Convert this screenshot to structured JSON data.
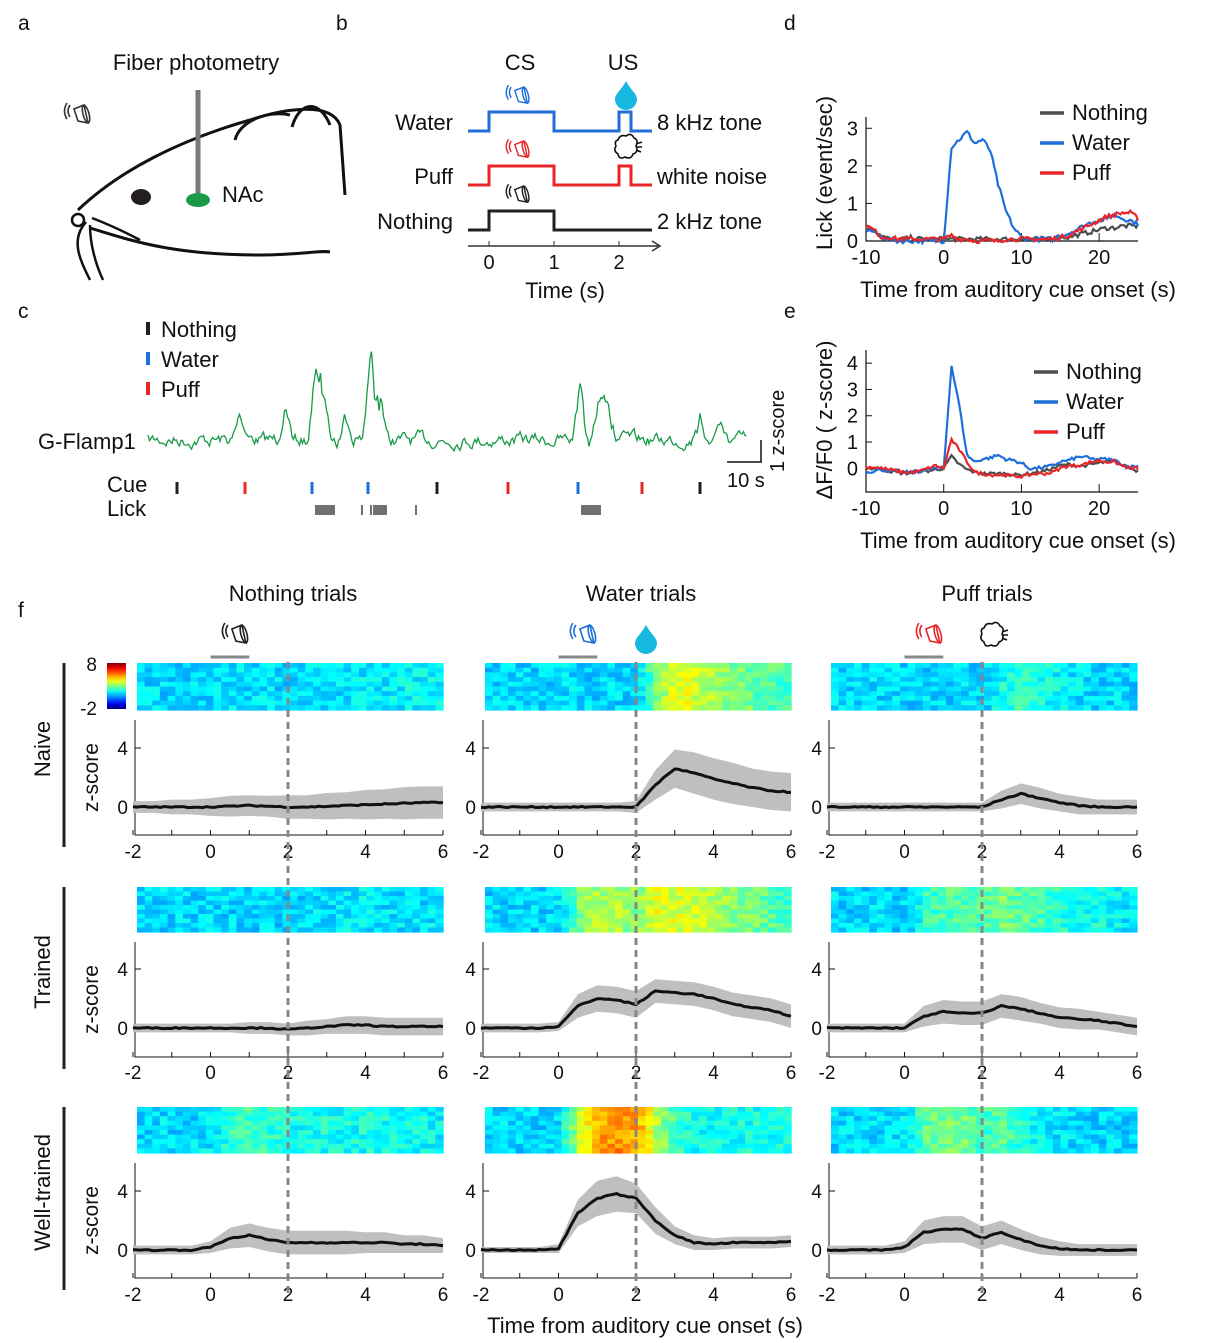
{
  "panel_labels": [
    "a",
    "b",
    "c",
    "d",
    "e",
    "f"
  ],
  "colors": {
    "nothing": "#231f20",
    "water": "#1f6fd9",
    "puff": "#e8262a",
    "nothing_line": "#4d4d4d",
    "water_drop": "#16b8e0",
    "naive": "#e0202a",
    "trained": "#2a8fd0",
    "welltrained": "#8e3a9a",
    "fiber_tip": "#1a9a48",
    "trace": "#1a9a48",
    "band": "#bfbfbf"
  },
  "panel_a": {
    "title": "Fiber photometry",
    "region": "NAc",
    "icons": [
      "speaker-icon"
    ]
  },
  "panel_b": {
    "cs_label": "CS",
    "us_label": "US",
    "rows": [
      {
        "label": "Water",
        "cue": "8 kHz tone",
        "color_key": "water",
        "has_us": true,
        "us_icon": "water-drop-icon"
      },
      {
        "label": "Puff",
        "cue": "white noise",
        "color_key": "puff",
        "has_us": true,
        "us_icon": "air-puff-icon"
      },
      {
        "label": "Nothing",
        "cue": "2 kHz tone",
        "color_key": "nothing",
        "has_us": false
      }
    ],
    "ticks": [
      "0",
      "1",
      "2"
    ],
    "xlabel": "Time (s)"
  },
  "panel_c": {
    "legend": [
      {
        "label": "Nothing",
        "color_key": "nothing"
      },
      {
        "label": "Water",
        "color_key": "water"
      },
      {
        "label": "Puff",
        "color_key": "puff"
      }
    ],
    "trace_label": "G-Flamp1",
    "cue_label": "Cue",
    "lick_label": "Lick",
    "scale_x": "10 s",
    "scale_y": "1 z-score",
    "cue_sequence": [
      "nothing",
      "puff",
      "water",
      "water",
      "nothing",
      "puff",
      "water",
      "puff",
      "nothing"
    ]
  },
  "chart_data": [
    {
      "id": "d",
      "type": "line",
      "xlabel": "Time from auditory cue onset (s)",
      "ylabel": "Lick (event/sec)",
      "xlim": [
        -10,
        25
      ],
      "ylim": [
        0,
        3.3
      ],
      "xticks": [
        "-10",
        "0",
        "10",
        "20"
      ],
      "yticks": [
        "0",
        "1",
        "2",
        "3"
      ],
      "legend_position": "top-right",
      "x": [
        -10,
        -9,
        -8,
        -7,
        -6,
        -5,
        -4,
        -3,
        -2,
        -1,
        0,
        1,
        2,
        3,
        4,
        5,
        6,
        7,
        8,
        9,
        10,
        11,
        12,
        13,
        14,
        15,
        16,
        17,
        18,
        19,
        20,
        21,
        22,
        23,
        24,
        25
      ],
      "series": [
        {
          "name": "Nothing",
          "color_key": "nothing_line",
          "values": [
            0.35,
            0.3,
            0.15,
            0.05,
            0.05,
            0.05,
            0.1,
            0.05,
            0.05,
            0.05,
            0.05,
            0.05,
            0.05,
            0.05,
            0.05,
            0.05,
            0.05,
            0.05,
            0.05,
            0.05,
            0.05,
            0.05,
            0.05,
            0.05,
            0.05,
            0.1,
            0.1,
            0.15,
            0.2,
            0.25,
            0.3,
            0.35,
            0.35,
            0.4,
            0.4,
            0.4
          ]
        },
        {
          "name": "Water",
          "color_key": "water",
          "values": [
            0.3,
            0.25,
            0.1,
            0.05,
            0.0,
            0.0,
            0.0,
            0.0,
            0.0,
            0.0,
            0.0,
            2.5,
            2.7,
            2.9,
            2.6,
            2.7,
            2.4,
            1.5,
            0.8,
            0.35,
            0.1,
            0.05,
            0.05,
            0.05,
            0.05,
            0.15,
            0.2,
            0.3,
            0.4,
            0.5,
            0.55,
            0.6,
            0.7,
            0.6,
            0.55,
            0.45
          ]
        },
        {
          "name": "Puff",
          "color_key": "puff",
          "values": [
            0.4,
            0.3,
            0.1,
            0.1,
            0.05,
            0.05,
            0.05,
            0.05,
            0.05,
            0.05,
            0.05,
            0.15,
            0.05,
            0.05,
            0.0,
            0.0,
            0.0,
            0.0,
            0.05,
            0.05,
            0.05,
            0.05,
            0.05,
            0.05,
            0.05,
            0.1,
            0.15,
            0.25,
            0.35,
            0.45,
            0.55,
            0.65,
            0.7,
            0.75,
            0.75,
            0.6
          ]
        }
      ]
    },
    {
      "id": "e",
      "type": "line",
      "xlabel": "Time from auditory cue onset (s)",
      "ylabel": "ΔF/F0 ( z-score)",
      "xlim": [
        -10,
        25
      ],
      "ylim": [
        -0.9,
        4.5
      ],
      "xticks": [
        "-10",
        "0",
        "10",
        "20"
      ],
      "yticks": [
        "0",
        "1",
        "2",
        "3",
        "4"
      ],
      "legend_position": "top-right",
      "x": [
        -10,
        -9,
        -8,
        -7,
        -6,
        -5,
        -4,
        -3,
        -2,
        -1,
        0,
        1,
        2,
        3,
        4,
        5,
        6,
        7,
        8,
        9,
        10,
        11,
        12,
        13,
        14,
        15,
        16,
        17,
        18,
        19,
        20,
        21,
        22,
        23,
        24,
        25
      ],
      "series": [
        {
          "name": "Nothing",
          "color_key": "nothing_line",
          "values": [
            0.0,
            0.0,
            -0.05,
            -0.1,
            -0.15,
            -0.2,
            -0.15,
            -0.1,
            -0.1,
            -0.05,
            0.0,
            0.45,
            0.15,
            -0.05,
            -0.15,
            -0.2,
            -0.2,
            -0.2,
            -0.2,
            -0.25,
            -0.25,
            -0.2,
            -0.15,
            -0.1,
            0.0,
            0.1,
            0.15,
            0.1,
            0.1,
            0.15,
            0.2,
            0.25,
            0.3,
            0.1,
            0.0,
            -0.1
          ]
        },
        {
          "name": "Water",
          "color_key": "water",
          "values": [
            -0.15,
            -0.1,
            -0.05,
            -0.1,
            -0.1,
            -0.15,
            -0.15,
            -0.1,
            -0.05,
            0.0,
            0.0,
            3.9,
            2.4,
            0.5,
            0.25,
            0.35,
            0.4,
            0.5,
            0.35,
            0.3,
            0.2,
            0.0,
            0.0,
            0.05,
            0.1,
            0.25,
            0.3,
            0.4,
            0.45,
            0.35,
            0.35,
            0.35,
            0.3,
            0.15,
            0.05,
            0.1
          ]
        },
        {
          "name": "Puff",
          "color_key": "puff",
          "values": [
            0.05,
            0.05,
            0.0,
            -0.05,
            -0.1,
            -0.15,
            -0.15,
            -0.1,
            0.0,
            0.1,
            0.0,
            1.1,
            0.7,
            0.25,
            -0.15,
            -0.2,
            -0.25,
            -0.25,
            -0.25,
            -0.3,
            -0.3,
            -0.25,
            -0.2,
            -0.2,
            -0.15,
            0.0,
            0.1,
            0.1,
            0.15,
            0.25,
            0.3,
            0.25,
            0.25,
            0.1,
            0.0,
            0.0
          ]
        }
      ]
    },
    {
      "id": "f",
      "type": "line",
      "xlabel": "Time from auditory cue onset (s)",
      "ylabel": "z-score",
      "xlim": [
        -2,
        6
      ],
      "ylim": [
        -1.9,
        5.9
      ],
      "xticks": [
        "-2",
        "0",
        "2",
        "4",
        "6"
      ],
      "yticks": [
        "0",
        "4"
      ],
      "colorbar": {
        "max": "8",
        "min": "-2",
        "colormap": "jet"
      },
      "columns": [
        {
          "title": "Nothing trials",
          "cs_color_key": "nothing",
          "us_icon": null
        },
        {
          "title": "Water trials",
          "cs_color_key": "water",
          "us_icon": "water-drop-icon"
        },
        {
          "title": "Puff trials",
          "cs_color_key": "puff",
          "us_icon": "air-puff-icon"
        }
      ],
      "rows": [
        {
          "label": "Naive",
          "color_key": "naive"
        },
        {
          "label": "Trained",
          "color_key": "trained"
        },
        {
          "label": "Well-trained",
          "color_key": "welltrained"
        }
      ],
      "x": [
        -2,
        -1.5,
        -1,
        -0.5,
        0,
        0.5,
        1,
        1.5,
        2,
        2.5,
        3,
        3.5,
        4,
        4.5,
        5,
        5.5,
        6
      ],
      "panels": [
        [
          {
            "mean": [
              0,
              0,
              0,
              0,
              0,
              0.05,
              0.1,
              0.05,
              0,
              0,
              0.05,
              0.1,
              0.15,
              0.2,
              0.25,
              0.3,
              0.3
            ],
            "sd": [
              0.4,
              0.4,
              0.5,
              0.5,
              0.6,
              0.7,
              0.7,
              0.7,
              0.8,
              0.8,
              0.9,
              0.9,
              1.0,
              1.0,
              1.1,
              1.1,
              1.1
            ]
          },
          {
            "mean": [
              0,
              0,
              0,
              0,
              0,
              0,
              0,
              0,
              0,
              1.5,
              2.6,
              2.3,
              1.9,
              1.6,
              1.3,
              1.1,
              1.0
            ],
            "sd": [
              0.3,
              0.3,
              0.3,
              0.3,
              0.3,
              0.3,
              0.3,
              0.3,
              0.4,
              1.0,
              1.3,
              1.4,
              1.4,
              1.4,
              1.3,
              1.3,
              1.3
            ]
          },
          {
            "mean": [
              0,
              0,
              0,
              0,
              0,
              0,
              0,
              0,
              0,
              0.5,
              0.9,
              0.6,
              0.3,
              0.1,
              0,
              0,
              0
            ],
            "sd": [
              0.3,
              0.3,
              0.3,
              0.3,
              0.3,
              0.3,
              0.3,
              0.3,
              0.3,
              0.6,
              0.7,
              0.7,
              0.6,
              0.6,
              0.5,
              0.5,
              0.5
            ]
          }
        ],
        [
          {
            "mean": [
              0,
              0,
              0,
              0,
              0,
              0,
              0,
              0,
              -0.1,
              0,
              0.1,
              0.2,
              0.2,
              0.1,
              0.1,
              0.1,
              0.1
            ],
            "sd": [
              0.3,
              0.3,
              0.3,
              0.3,
              0.3,
              0.3,
              0.4,
              0.4,
              0.4,
              0.5,
              0.5,
              0.6,
              0.6,
              0.6,
              0.6,
              0.6,
              0.6
            ]
          },
          {
            "mean": [
              0,
              0,
              0,
              0,
              0.1,
              1.5,
              2.0,
              1.9,
              1.6,
              2.5,
              2.4,
              2.3,
              2.0,
              1.6,
              1.4,
              1.2,
              0.8
            ],
            "sd": [
              0.3,
              0.3,
              0.3,
              0.3,
              0.3,
              0.8,
              0.9,
              0.9,
              0.9,
              0.8,
              0.8,
              0.8,
              0.8,
              0.8,
              0.8,
              0.8,
              0.8
            ]
          },
          {
            "mean": [
              0,
              0,
              0,
              0,
              0,
              0.8,
              1.1,
              1.0,
              1.0,
              1.5,
              1.3,
              1.0,
              0.7,
              0.6,
              0.5,
              0.3,
              0.1
            ],
            "sd": [
              0.3,
              0.3,
              0.3,
              0.3,
              0.3,
              0.7,
              0.8,
              0.8,
              0.8,
              0.8,
              0.8,
              0.7,
              0.7,
              0.7,
              0.6,
              0.6,
              0.6
            ]
          }
        ],
        [
          {
            "mean": [
              0,
              0,
              0,
              0,
              0.2,
              0.8,
              1.0,
              0.7,
              0.5,
              0.5,
              0.5,
              0.5,
              0.5,
              0.5,
              0.4,
              0.4,
              0.3
            ],
            "sd": [
              0.3,
              0.3,
              0.3,
              0.3,
              0.4,
              0.7,
              0.8,
              0.8,
              0.8,
              0.8,
              0.8,
              0.8,
              0.7,
              0.7,
              0.6,
              0.6,
              0.5
            ]
          },
          {
            "mean": [
              0,
              0,
              0,
              0,
              0.1,
              2.5,
              3.5,
              3.8,
              3.5,
              2.0,
              1.0,
              0.5,
              0.4,
              0.5,
              0.5,
              0.5,
              0.6
            ],
            "sd": [
              0.2,
              0.2,
              0.2,
              0.2,
              0.3,
              0.9,
              1.2,
              1.2,
              1.0,
              0.9,
              0.6,
              0.5,
              0.4,
              0.4,
              0.4,
              0.4,
              0.4
            ]
          },
          {
            "mean": [
              0,
              0,
              0,
              0,
              0.2,
              1.2,
              1.4,
              1.4,
              0.8,
              1.2,
              0.7,
              0.3,
              0.1,
              0,
              0,
              0,
              0
            ],
            "sd": [
              0.3,
              0.3,
              0.3,
              0.3,
              0.4,
              0.8,
              0.9,
              0.9,
              0.8,
              0.8,
              0.7,
              0.6,
              0.5,
              0.4,
              0.4,
              0.4,
              0.4
            ]
          }
        ]
      ]
    }
  ]
}
